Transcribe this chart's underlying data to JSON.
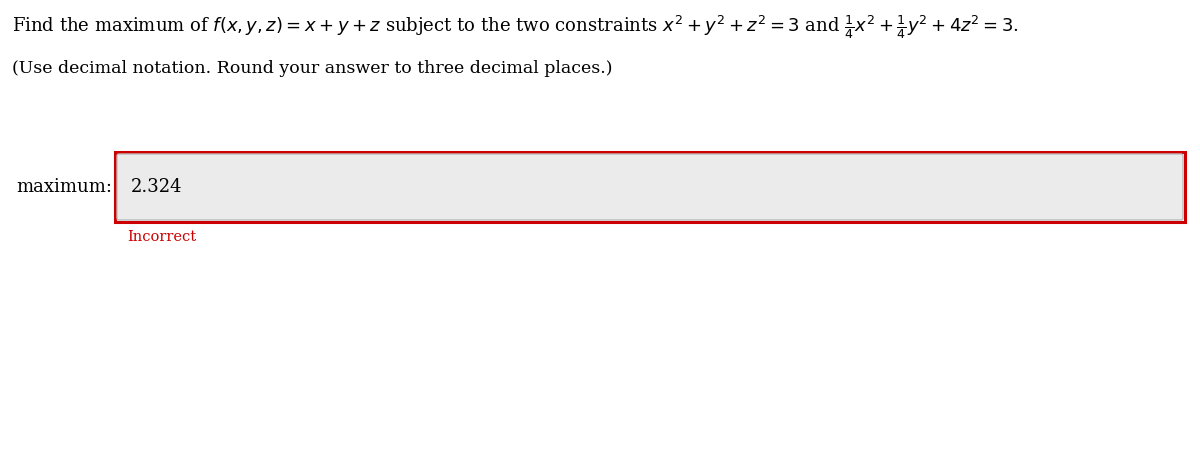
{
  "background_color": "#ffffff",
  "line1": "Find the maximum of $f(x, y, z) = x + y + z$ subject to the two constraints $x^2 + y^2 + z^2 = 3$ and $\\frac{1}{4}x^2 + \\frac{1}{4}y^2 + 4z^2 = 3$.",
  "line2": "(Use decimal notation. Round your answer to three decimal places.)",
  "label_text": "maximum:",
  "answer_value": "2.324",
  "incorrect_text": "Incorrect",
  "text_color": "#000000",
  "incorrect_color": "#cc0000",
  "box_bg_color": "#ebebeb",
  "box_border_color": "#cc0000",
  "input_border_color": "#bbbbbb",
  "label_fontsize": 13,
  "answer_fontsize": 13,
  "line1_fontsize": 13,
  "line2_fontsize": 12.5,
  "incorrect_fontsize": 10.5,
  "fig_width": 12.0,
  "fig_height": 4.68,
  "dpi": 100
}
